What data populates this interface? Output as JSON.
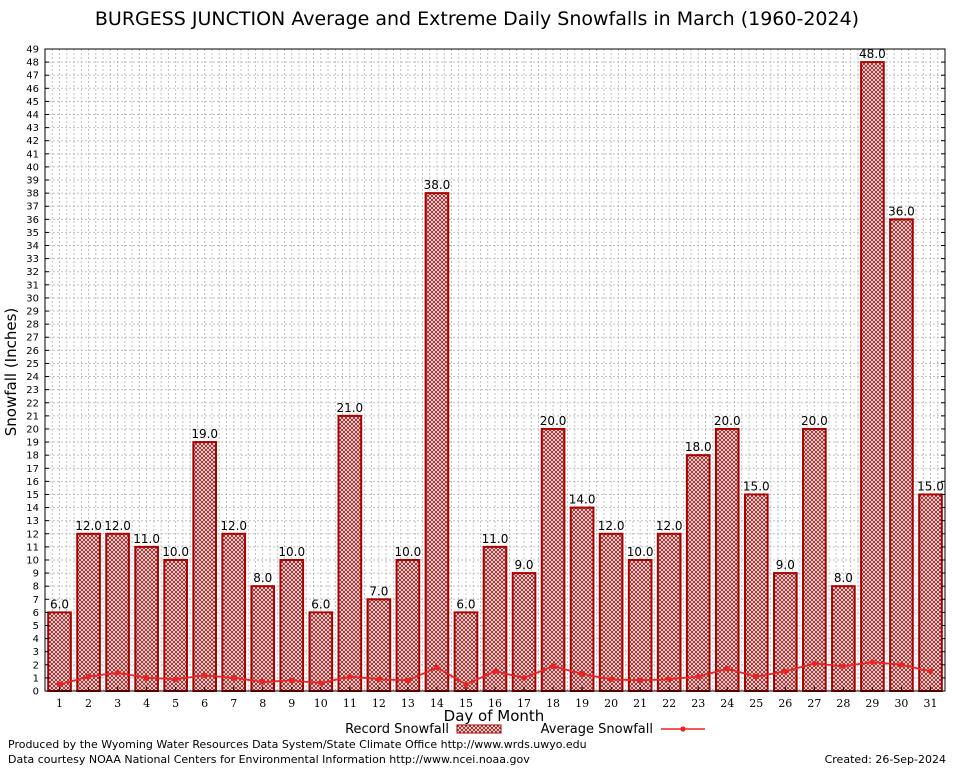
{
  "chart_data": {
    "type": "bar",
    "title": "BURGESS JUNCTION Average and Extreme Daily Snowfalls in March (1960-2024)",
    "xlabel": "Day of Month",
    "ylabel": "Snowfall (Inches)",
    "ylim": [
      0,
      49
    ],
    "grid": true,
    "legend_position": "bottom",
    "categories": [
      "1",
      "2",
      "3",
      "4",
      "5",
      "6",
      "7",
      "8",
      "9",
      "10",
      "11",
      "12",
      "13",
      "14",
      "15",
      "16",
      "17",
      "18",
      "19",
      "20",
      "21",
      "22",
      "23",
      "24",
      "25",
      "26",
      "27",
      "28",
      "29",
      "30",
      "31"
    ],
    "series": [
      {
        "name": "Record Snowfall",
        "type": "bar",
        "values": [
          6,
          12,
          12,
          11,
          10,
          19,
          12,
          8,
          10,
          6,
          21,
          7,
          10,
          38,
          6,
          11,
          9,
          20,
          14,
          12,
          10,
          12,
          18,
          20,
          15,
          9,
          20,
          8,
          48,
          36,
          15
        ],
        "labels": [
          "6.0",
          "12.0",
          "12.0",
          "11.0",
          "10.0",
          "19.0",
          "12.0",
          "8.0",
          "10.0",
          "6.0",
          "21.0",
          "7.0",
          "10.0",
          "38.0",
          "6.0",
          "11.0",
          "9.0",
          "20.0",
          "14.0",
          "12.0",
          "10.0",
          "12.0",
          "18.0",
          "20.0",
          "15.0",
          "9.0",
          "20.0",
          "8.0",
          "48.0",
          "36.0",
          "15.0"
        ]
      },
      {
        "name": "Average Snowfall",
        "type": "line",
        "values": [
          0.5,
          1.1,
          1.4,
          1.0,
          0.9,
          1.2,
          1.0,
          0.7,
          0.8,
          0.6,
          1.1,
          0.9,
          0.8,
          1.8,
          0.5,
          1.5,
          1.0,
          1.9,
          1.3,
          0.9,
          0.8,
          0.9,
          1.1,
          1.7,
          1.1,
          1.5,
          2.1,
          1.9,
          2.2,
          2.0,
          1.5
        ]
      }
    ],
    "yticks": [
      "0",
      "1",
      "2",
      "3",
      "4",
      "5",
      "6",
      "7",
      "8",
      "9",
      "10",
      "11",
      "12",
      "13",
      "14",
      "15",
      "16",
      "17",
      "18",
      "19",
      "20",
      "21",
      "22",
      "23",
      "24",
      "25",
      "26",
      "27",
      "28",
      "29",
      "30",
      "31",
      "32",
      "33",
      "34",
      "35",
      "36",
      "37",
      "38",
      "39",
      "40",
      "41",
      "42",
      "43",
      "44",
      "45",
      "46",
      "47",
      "48",
      "49"
    ]
  },
  "footer": {
    "line1": "Produced by the Wyoming Water Resources Data System/State Climate Office http://www.wrds.uwyo.edu",
    "line2": "Data courtesy NOAA National Centers for Environmental Information http://www.ncei.noaa.gov",
    "created": "Created:  26-Sep-2024"
  },
  "colors": {
    "bar_stroke": "#aa0000",
    "bar_fill": "#b85a5a",
    "line": "#ee2222",
    "grid": "#c0c0c0"
  }
}
